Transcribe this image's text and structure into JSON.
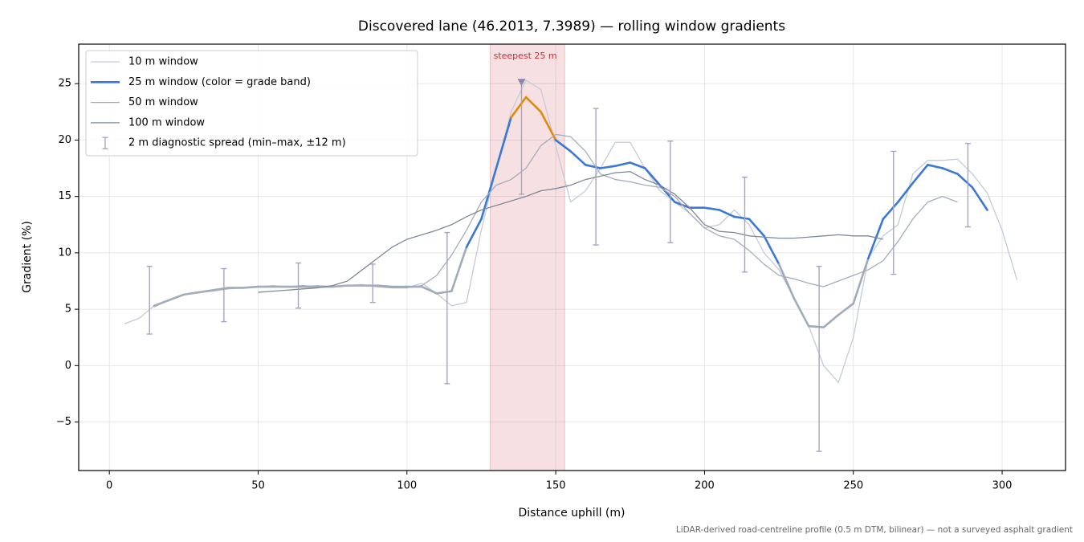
{
  "chart_data": {
    "type": "line",
    "title": "Discovered lane (46.2013, 7.3989) — rolling window gradients",
    "x_label": "Distance uphill (m)",
    "y_label": "Gradient (%)",
    "footnote": "LiDAR-derived road-centreline profile (0.5 m DTM, bilinear) — not a surveyed asphalt gradient",
    "xlim": [
      -10.3,
      321.3
    ],
    "ylim": [
      -9.3,
      28.5
    ],
    "xticks": [
      0,
      50,
      100,
      150,
      200,
      250,
      300
    ],
    "yticks": [
      {
        "value": -5,
        "label": "−5"
      },
      0,
      5,
      10,
      15,
      20,
      25
    ],
    "grid": true,
    "legend": "upper left",
    "x": [
      5,
      10,
      15,
      20,
      25,
      30,
      35,
      40,
      45,
      50,
      55,
      60,
      65,
      70,
      75,
      80,
      85,
      90,
      95,
      100,
      105,
      110,
      115,
      120,
      125,
      130,
      135,
      140,
      145,
      150,
      155,
      160,
      165,
      170,
      175,
      180,
      185,
      190,
      195,
      200,
      205,
      210,
      215,
      220,
      225,
      230,
      235,
      240,
      245,
      250,
      255,
      260,
      265,
      270,
      275,
      280,
      285,
      290,
      295,
      300,
      305
    ],
    "series": [
      {
        "name": "10 m window",
        "color": "#c3cbd7",
        "width": 1.3,
        "values": [
          3.7,
          4.2,
          5.3,
          5.8,
          6.3,
          6.5,
          6.6,
          6.8,
          6.9,
          7.0,
          7.1,
          7.0,
          7.0,
          7.1,
          7.0,
          7.1,
          7.2,
          7.0,
          6.9,
          6.9,
          7.3,
          6.4,
          5.3,
          5.6,
          12,
          17.5,
          22.5,
          25.3,
          24.5,
          19.5,
          14.5,
          15.5,
          17.5,
          19.8,
          19.8,
          17.5,
          15.5,
          14.5,
          13.5,
          12.2,
          12.5,
          13.8,
          12.5,
          10.0,
          8.5,
          6.0,
          3.5,
          0,
          -1.5,
          2.5,
          9.5,
          11.5,
          12.5,
          17,
          18.2,
          18.2,
          18.3,
          17,
          15.3,
          12,
          7.6
        ]
      },
      {
        "name": "25 m window (color = grade band)",
        "color": "#3a78d8",
        "width": 2.6,
        "band_edges": [
          10,
          20
        ],
        "band_colors": [
          "#a0aab8",
          "#3a78d8",
          "#e08a0b"
        ],
        "values": [
          null,
          null,
          5.3,
          5.8,
          6.3,
          6.5,
          6.7,
          6.9,
          6.9,
          7.0,
          7.0,
          7.0,
          7.0,
          7.0,
          7.0,
          7.1,
          7.1,
          7.1,
          7.0,
          7.0,
          7.0,
          6.4,
          6.6,
          10.5,
          13.0,
          17.5,
          22,
          23.8,
          22.5,
          20.0,
          19.0,
          17.8,
          17.5,
          17.7,
          18.0,
          17.5,
          16.0,
          14.5,
          14.0,
          14.0,
          13.8,
          13.2,
          13.0,
          11.5,
          9.0,
          6.0,
          3.5,
          3.4,
          4.5,
          5.5,
          9.5,
          13,
          14.5,
          16.2,
          17.8,
          17.5,
          17.0,
          15.8,
          13.8,
          null,
          null
        ]
      },
      {
        "name": "50 m window",
        "color": "#a3adbb",
        "width": 1.3,
        "values": [
          null,
          null,
          5.2,
          5.8,
          6.3,
          6.5,
          6.7,
          6.9,
          6.9,
          7.0,
          7.0,
          7.0,
          7.1,
          7.0,
          7.0,
          7.1,
          7.1,
          7.0,
          6.9,
          6.9,
          7.1,
          8.0,
          9.8,
          12,
          14.5,
          16.0,
          16.5,
          17.5,
          19.5,
          20.5,
          20.3,
          19.0,
          17.0,
          16.5,
          16.3,
          16.0,
          15.8,
          15.0,
          13.5,
          12.2,
          11.5,
          11.2,
          10.2,
          9.0,
          8.0,
          7.7,
          7.3,
          7.0,
          7.5,
          8.0,
          8.5,
          9.3,
          11.0,
          13.0,
          14.5,
          15.0,
          14.5,
          null,
          null,
          null,
          null
        ]
      },
      {
        "name": "100 m window",
        "color": "#7f8898",
        "width": 1.3,
        "values": [
          null,
          null,
          null,
          null,
          null,
          null,
          null,
          null,
          null,
          6.5,
          6.6,
          6.7,
          6.8,
          6.9,
          7.1,
          7.5,
          8.5,
          9.5,
          10.5,
          11.2,
          11.6,
          12.0,
          12.5,
          13.2,
          13.8,
          14.2,
          14.6,
          15.0,
          15.5,
          15.7,
          16.0,
          16.5,
          16.8,
          17.1,
          17.2,
          16.5,
          16.0,
          15.2,
          14.0,
          12.5,
          11.9,
          11.8,
          11.5,
          11.4,
          11.3,
          11.3,
          11.4,
          11.5,
          11.6,
          11.5,
          11.5,
          11.2,
          null,
          null,
          null,
          null,
          null,
          null,
          null,
          null,
          null
        ]
      }
    ],
    "error_bars": {
      "name": "2 m diagnostic spread (min–max, ±12 m)",
      "color": "#a8a4c0",
      "x": [
        13.5,
        38.5,
        63.5,
        88.5,
        113.5,
        138.5,
        163.5,
        188.5,
        213.5,
        238.5,
        263.5,
        288.5
      ],
      "min": [
        2.8,
        3.9,
        5.1,
        5.6,
        -1.6,
        15.2,
        10.7,
        10.9,
        8.3,
        -7.6,
        8.1,
        12.3
      ],
      "max": [
        8.8,
        8.6,
        9.1,
        9.0,
        11.8,
        25.3,
        22.8,
        19.9,
        16.7,
        8.8,
        19.0,
        19.7
      ]
    },
    "highlight": {
      "x0": 128,
      "x1": 153,
      "label": "steepest 25 m",
      "color": "#c0303a",
      "marker_x": 138.5,
      "marker_y": 25
    }
  }
}
